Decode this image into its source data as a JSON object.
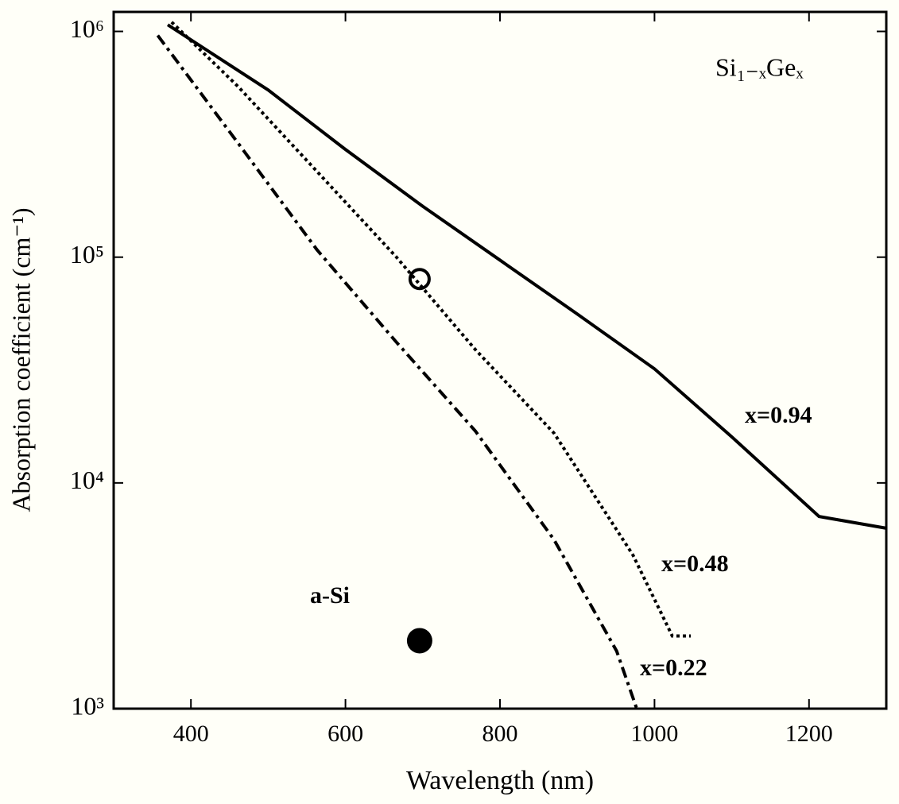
{
  "chart_data": {
    "type": "line",
    "x_label": "Wavelength (nm)",
    "y_label": "Absorption coefficient (cm⁻¹)",
    "annotation": "Si₁₋ₓGeₓ",
    "log_y": true,
    "xlim": [
      300,
      1300
    ],
    "xticks": [
      400,
      600,
      800,
      1000,
      1200
    ],
    "ylim": [
      1000,
      1220000
    ],
    "yticks": [
      {
        "value": 1000,
        "label": "10³"
      },
      {
        "value": 10000,
        "label": "10⁴"
      },
      {
        "value": 100000,
        "label": "10⁵"
      },
      {
        "value": 1000000,
        "label": "10⁶"
      }
    ],
    "series": [
      {
        "name": "x=0.94",
        "color": "#000000",
        "dash": "solid",
        "x": [
          370,
          500,
          600,
          700,
          800,
          900,
          1000,
          1100,
          1213,
          1300
        ],
        "values": [
          1070000,
          550000,
          300000,
          168000,
          97000,
          56000,
          32000,
          16000,
          7100,
          6300
        ]
      },
      {
        "name": "x=0.48",
        "color": "#000000",
        "dash": "dotted",
        "x": [
          375,
          461,
          563,
          666,
          768,
          870,
          972,
          1023,
          1047
        ],
        "values": [
          1100000,
          570000,
          240000,
          100000,
          39000,
          16600,
          4800,
          2100,
          2100
        ]
      },
      {
        "name": "x=0.22",
        "color": "#000000",
        "dash": "dashed",
        "x": [
          357,
          461,
          563,
          666,
          768,
          870,
          951,
          977
        ],
        "values": [
          960000,
          320000,
          108000,
          42000,
          17000,
          5600,
          1800,
          1000
        ]
      }
    ],
    "points": [
      {
        "x": 696,
        "y": 80000,
        "fill": "none"
      },
      {
        "x": 696,
        "y": 2000,
        "fill": "#000000",
        "label": "a-Si"
      }
    ]
  }
}
